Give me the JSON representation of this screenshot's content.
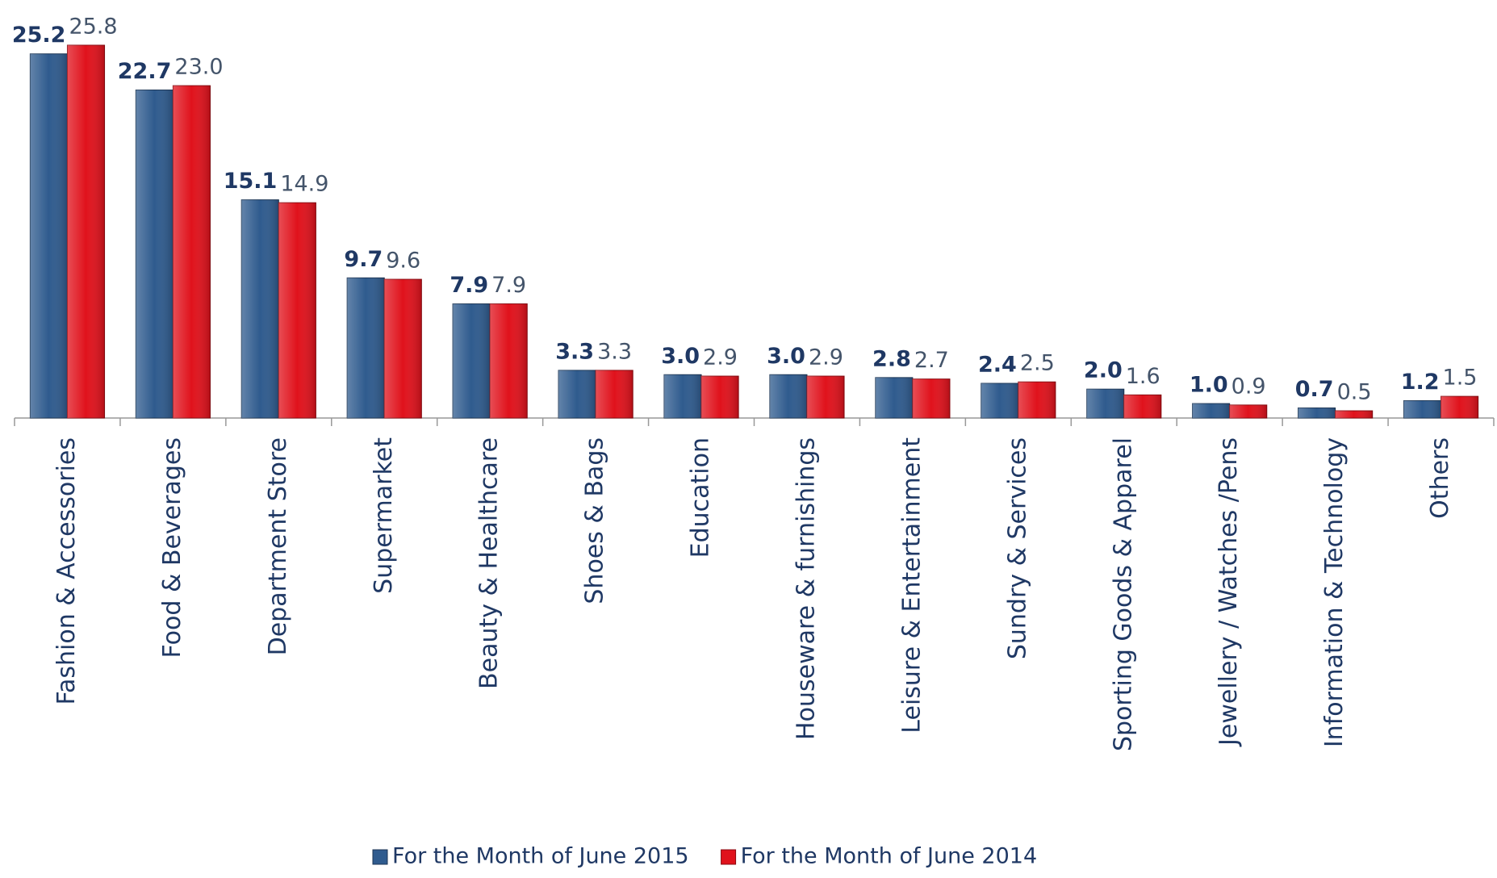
{
  "chart_data": {
    "type": "bar",
    "categories": [
      "Fashion & Accessories",
      "Food & Beverages",
      "Department Store",
      "Supermarket",
      "Beauty & Healthcare",
      "Shoes & Bags",
      "Education",
      "Houseware & furnishings",
      "Leisure & Entertainment",
      "Sundry & Services",
      "Sporting Goods & Apparel",
      "Jewellery / Watches /Pens",
      "Information & Technology",
      "Others"
    ],
    "series": [
      {
        "name": "For the Month of June 2015",
        "color": "#2f5b8e",
        "values": [
          25.2,
          22.7,
          15.1,
          9.7,
          7.9,
          3.3,
          3.0,
          3.0,
          2.8,
          2.4,
          2.0,
          1.0,
          0.7,
          1.2
        ],
        "value_labels": [
          "25.2",
          "22.7",
          "15.1",
          "9.7",
          "7.9",
          "3.3",
          "3.0",
          "3.0",
          "2.8",
          "2.4",
          "2.0",
          "1.0",
          "0.7",
          "1.2"
        ]
      },
      {
        "name": "For the Month of June 2014",
        "color": "#e0121c",
        "values": [
          25.8,
          23.0,
          14.9,
          9.6,
          7.9,
          3.3,
          2.9,
          2.9,
          2.7,
          2.5,
          1.6,
          0.9,
          0.5,
          1.5
        ],
        "value_labels": [
          "25.8",
          "23.0",
          "14.9",
          "9.6",
          "7.9",
          "3.3",
          "2.9",
          "2.9",
          "2.7",
          "2.5",
          "1.6",
          "0.9",
          "0.5",
          "1.5"
        ]
      }
    ],
    "legend": "bottom"
  }
}
